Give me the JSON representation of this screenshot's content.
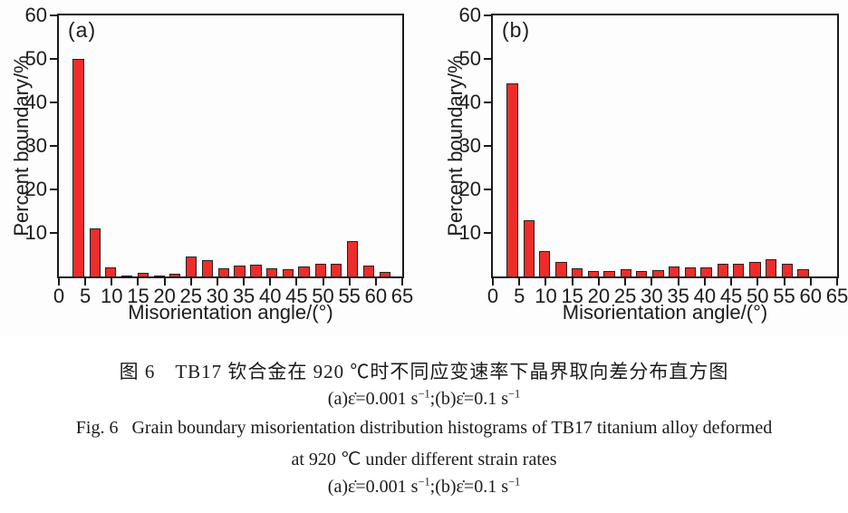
{
  "colors": {
    "bar_fill": "#ee2d2a",
    "bar_stroke": "#232323",
    "axis": "#1a1a1a",
    "background": "#ffffff"
  },
  "chart_data": [
    {
      "type": "bar",
      "panel_tag": "(a)",
      "series_label": "strain rate 0.001 s-1",
      "xlabel": "Misorientation angle/(°)",
      "ylabel": "Percent boundary/%",
      "xlim": [
        0,
        65
      ],
      "ylim": [
        0,
        60
      ],
      "x_ticks": [
        0,
        5,
        10,
        15,
        20,
        25,
        30,
        35,
        40,
        45,
        50,
        55,
        60,
        65
      ],
      "y_ticks": [
        10,
        20,
        30,
        40,
        50,
        60
      ],
      "grid": false,
      "legend": "none",
      "bin_width": 2.1,
      "x": [
        3.7,
        6.8,
        9.8,
        12.9,
        15.9,
        19.0,
        22.0,
        25.1,
        28.1,
        31.2,
        34.2,
        37.3,
        40.3,
        43.4,
        46.4,
        49.5,
        52.5,
        55.6,
        58.6,
        61.7
      ],
      "values": [
        49.9,
        11.0,
        2.1,
        0.3,
        0.9,
        0.25,
        0.6,
        4.5,
        3.8,
        1.8,
        2.4,
        2.8,
        1.9,
        1.6,
        2.2,
        2.9,
        2.9,
        8.1,
        2.4,
        1.0
      ]
    },
    {
      "type": "bar",
      "panel_tag": "(b)",
      "series_label": "strain rate 0.1 s-1",
      "xlabel": "Misorientation angle/(°)",
      "ylabel": "Percent boundary/%",
      "xlim": [
        0,
        65
      ],
      "ylim": [
        0,
        60
      ],
      "x_ticks": [
        0,
        5,
        10,
        15,
        20,
        25,
        30,
        35,
        40,
        45,
        50,
        55,
        60,
        65
      ],
      "y_ticks": [
        10,
        20,
        30,
        40,
        50,
        60
      ],
      "grid": false,
      "legend": "none",
      "bin_width": 2.1,
      "x": [
        3.7,
        6.8,
        9.8,
        12.9,
        15.9,
        19.0,
        22.0,
        25.1,
        28.1,
        31.2,
        34.2,
        37.3,
        40.3,
        43.4,
        46.4,
        49.5,
        52.5,
        55.6,
        58.6
      ],
      "values": [
        44.4,
        12.9,
        5.8,
        3.3,
        1.9,
        1.2,
        1.3,
        1.6,
        1.3,
        1.5,
        2.2,
        2.0,
        2.1,
        3.0,
        2.9,
        3.3,
        3.9,
        2.9,
        1.6
      ]
    }
  ],
  "caption": {
    "zh_line1": "图 6　TB17 钦合金在 920 ℃时不同应变速率下晶界取向差分布直方图",
    "en_line1": "Fig. 6  Grain boundary misorientation distribution histograms of TB17 titanium alloy deformed",
    "en_line2": "at 920 ℃ under different strain rates",
    "strain_parts": [
      {
        "t": "(a)ε̇=0.001 s"
      },
      {
        "sup": "−1"
      },
      {
        "t": ";(b)ε̇=0.1 s"
      },
      {
        "sup": "−1"
      }
    ]
  }
}
